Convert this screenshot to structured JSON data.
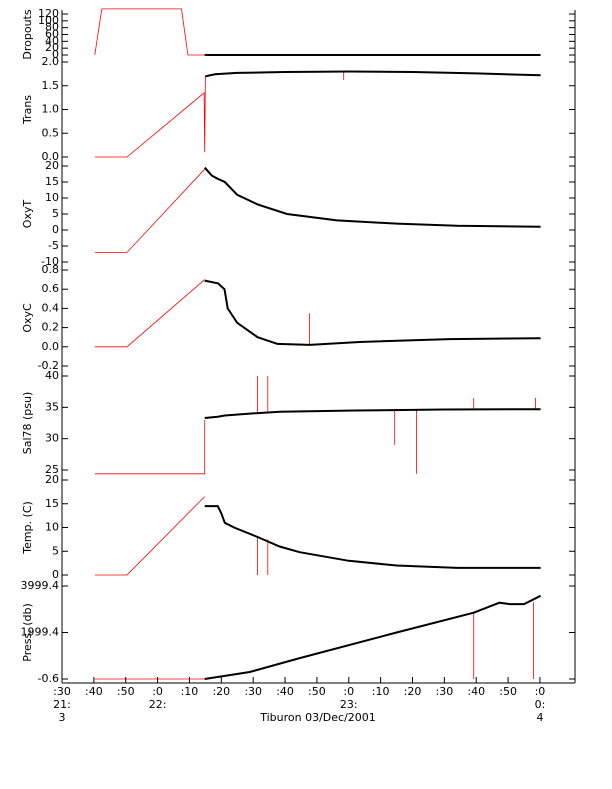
{
  "chart_data": [
    {
      "type": "line",
      "ylabel": "Dropouts",
      "ylim": [
        0,
        120
      ],
      "yticks": [
        0,
        20,
        40,
        60,
        80,
        100,
        120
      ],
      "series": [
        {
          "color": "#ff0000",
          "x": [
            40.3,
            42.5,
            67.5,
            69.5,
            74.8
          ],
          "values": [
            0,
            135,
            135,
            0,
            0
          ]
        },
        {
          "color": "#000000",
          "x": [
            74.8,
            180.2
          ],
          "values": [
            0,
            0
          ]
        }
      ]
    },
    {
      "type": "line",
      "ylabel": "Trans",
      "ylim": [
        0,
        2
      ],
      "yticks": [
        {
          "value": 0,
          "label": "0.0"
        },
        0.5,
        {
          "value": 1,
          "label": "1.0"
        },
        1.5,
        {
          "value": 2,
          "label": "2.0"
        }
      ],
      "series": [
        {
          "color": "#ff0000",
          "x": [
            40.3,
            50.4,
            74.6,
            74.8,
            75.0,
            118.4,
            118.4,
            118.4
          ],
          "values": [
            0,
            0,
            1.35,
            0.1,
            1.7,
            null,
            1.8,
            1.62
          ]
        },
        {
          "color": "#000000",
          "x": [
            75,
            78,
            85,
            100,
            120,
            140,
            160,
            180.2
          ],
          "values": [
            1.7,
            1.74,
            1.77,
            1.79,
            1.8,
            1.79,
            1.76,
            1.72
          ]
        }
      ]
    },
    {
      "type": "line",
      "ylabel": "OxyT",
      "ylim": [
        -10,
        20
      ],
      "yticks": [
        -10,
        -5,
        0,
        5,
        10,
        15,
        20
      ],
      "series": [
        {
          "color": "#ff0000",
          "x": [
            40.3,
            50.4,
            74.8
          ],
          "values": [
            -7,
            -7,
            19
          ]
        },
        {
          "color": "#000000",
          "x": [
            74.8,
            77,
            78.9,
            81.1,
            85,
            91.4,
            100.6,
            116.3,
            135,
            154,
            180.2
          ],
          "values": [
            19.5,
            17,
            16,
            15,
            11,
            8,
            5,
            3,
            2,
            1.3,
            1
          ]
        }
      ]
    },
    {
      "type": "line",
      "ylabel": "OxyC",
      "ylim": [
        -0.2,
        0.8
      ],
      "yticks": [
        -0.2,
        {
          "value": 0,
          "label": "0.0"
        },
        0.2,
        0.4,
        0.6,
        0.8
      ],
      "series": [
        {
          "color": "#ff0000",
          "x": [
            40.3,
            50.4,
            74.8,
            107.7,
            107.7,
            107.7
          ],
          "values": [
            0,
            0,
            0.7,
            null,
            0.02,
            0.35
          ]
        },
        {
          "color": "#000000",
          "x": [
            74.8,
            79,
            81,
            82,
            85,
            91.4,
            97.6,
            107.7,
            123.4,
            151.6,
            180.2
          ],
          "values": [
            0.69,
            0.66,
            0.6,
            0.4,
            0.25,
            0.1,
            0.03,
            0.02,
            0.05,
            0.08,
            0.09
          ]
        }
      ]
    },
    {
      "type": "line",
      "ylabel": "Sal78 (psu)",
      "ylim": [
        25,
        40
      ],
      "yticks": [
        25,
        30,
        35,
        40
      ],
      "series": [
        {
          "color": "#ff0000",
          "x": [
            40.3,
            74.8,
            74.8,
            91.4,
            91.4,
            91.4,
            94.6,
            94.6,
            94.6,
            134.4,
            134.4,
            134.4,
            141.3,
            141.3,
            141.3,
            159.2,
            159.2,
            159.2,
            178.6,
            178.6,
            178.6
          ],
          "values": [
            24.4,
            24.4,
            33,
            null,
            34.2,
            40,
            null,
            34.2,
            40,
            null,
            34.6,
            29,
            null,
            34.6,
            24.4,
            null,
            34.7,
            36.5,
            null,
            34.7,
            36.5
          ]
        },
        {
          "color": "#000000",
          "x": [
            74.8,
            78.9,
            81.1,
            88.9,
            98.3,
            122,
            150,
            180.2
          ],
          "values": [
            33.3,
            33.5,
            33.7,
            34,
            34.3,
            34.5,
            34.65,
            34.7
          ]
        }
      ]
    },
    {
      "type": "line",
      "ylabel": "Temp. (C)",
      "ylim": [
        0,
        20
      ],
      "yticks": [
        0,
        5,
        10,
        15,
        20
      ],
      "series": [
        {
          "color": "#ff0000",
          "x": [
            40.3,
            50.4,
            74.8,
            91.4,
            91.4,
            91.4,
            94.6,
            94.6,
            94.6
          ],
          "values": [
            0,
            0,
            16.5,
            null,
            8,
            0,
            null,
            7.5,
            0
          ]
        },
        {
          "color": "#000000",
          "x": [
            74.8,
            78.9,
            80,
            81.1,
            84,
            91.4,
            98.3,
            104.6,
            120,
            135,
            154,
            180.2
          ],
          "values": [
            14.5,
            14.5,
            13,
            11,
            10,
            8,
            6,
            4.8,
            3,
            2,
            1.5,
            1.5
          ]
        }
      ]
    },
    {
      "type": "line",
      "ylabel": "Press. (db)",
      "ylim": [
        -0.6,
        3999.4
      ],
      "yticks": [
        -0.6,
        1999.4,
        3999.4
      ],
      "xlabel": "Tiburon 03/Dec/2001",
      "xlim": [
        30,
        191
      ],
      "xticks": [
        {
          "value": 30,
          "label": ":30"
        },
        {
          "value": 40,
          "label": ":40"
        },
        {
          "value": 50,
          "label": ":50"
        },
        {
          "value": 60,
          "label": ":0"
        },
        {
          "value": 70,
          "label": ":10"
        },
        {
          "value": 80,
          "label": ":20"
        },
        {
          "value": 90,
          "label": ":30"
        },
        {
          "value": 100,
          "label": ":40"
        },
        {
          "value": 110,
          "label": ":50"
        },
        {
          "value": 120,
          "label": ":0"
        },
        {
          "value": 130,
          "label": ":10"
        },
        {
          "value": 140,
          "label": ":20"
        },
        {
          "value": 150,
          "label": ":30"
        },
        {
          "value": 160,
          "label": ":40"
        },
        {
          "value": 170,
          "label": ":50"
        },
        {
          "value": 180,
          "label": ":0"
        }
      ],
      "hour_labels": [
        {
          "value": 30,
          "label": "21:"
        },
        {
          "value": 60,
          "label": "22:"
        },
        {
          "value": 120,
          "label": "23:"
        },
        {
          "value": 180,
          "label": "0:"
        }
      ],
      "day_labels": [
        {
          "value": 30,
          "label": "3"
        },
        {
          "value": 180,
          "label": "4"
        }
      ],
      "series": [
        {
          "color": "#ff0000",
          "x": [
            40.3,
            74.8,
            159.2,
            159.2,
            159.2,
            178,
            178,
            178
          ],
          "values": [
            0,
            0,
            null,
            2850,
            0,
            null,
            3300,
            0
          ]
        },
        {
          "color": "#000000",
          "x": [
            74.8,
            88.9,
            104.6,
            135,
            159.2,
            167.3,
            170.4,
            175,
            180.2
          ],
          "values": [
            0,
            300,
            900,
            2000,
            2850,
            3280,
            3220,
            3220,
            3580
          ]
        }
      ]
    }
  ]
}
